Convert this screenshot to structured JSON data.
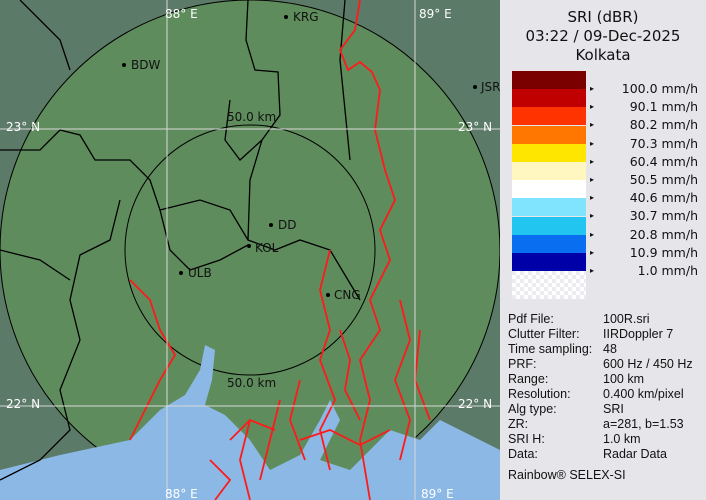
{
  "header": {
    "product": "SRI (dBR)",
    "datetime": "03:22 / 09-Dec-2025",
    "station": "Kolkata"
  },
  "legend": [
    {
      "label": "100.0 mm/h",
      "color": "#7a0000"
    },
    {
      "label": "90.1 mm/h",
      "color": "#c00000"
    },
    {
      "label": "80.2 mm/h",
      "color": "#ff3300"
    },
    {
      "label": "70.3 mm/h",
      "color": "#ff7700"
    },
    {
      "label": "60.4 mm/h",
      "color": "#ffe600"
    },
    {
      "label": "50.5 mm/h",
      "color": "#fff6c0"
    },
    {
      "label": "40.6 mm/h",
      "color": "#ffffff"
    },
    {
      "label": "30.7 mm/h",
      "color": "#80e4ff"
    },
    {
      "label": "20.8 mm/h",
      "color": "#22c4f0"
    },
    {
      "label": "10.9 mm/h",
      "color": "#0a6ef0"
    },
    {
      "label": "1.0 mm/h",
      "color": "#0000a8"
    }
  ],
  "info": [
    {
      "key": "Pdf File:",
      "value": "100R.sri"
    },
    {
      "key": "Clutter Filter:",
      "value": "IIRDoppler 7"
    },
    {
      "key": "Time sampling:",
      "value": "48"
    },
    {
      "key": "PRF:",
      "value": "600 Hz / 450 Hz"
    },
    {
      "key": "Range:",
      "value": "100 km"
    },
    {
      "key": "Resolution:",
      "value": "0.400 km/pixel"
    },
    {
      "key": "Alg type:",
      "value": "SRI"
    },
    {
      "key": "ZR:",
      "value": "a=281, b=1.53"
    },
    {
      "key": "SRI H:",
      "value": "1.0 km"
    },
    {
      "key": "Data:",
      "value": "Radar Data"
    }
  ],
  "brand": "Rainbow® SELEX-SI",
  "map": {
    "grid_labels": {
      "lon_88_top": "88° E",
      "lon_89_top": "89° E",
      "lon_88_bottom": "88° E",
      "lon_89_bottom": "89° E",
      "lat_23_left": "23° N",
      "lat_23_right": "23° N",
      "lat_22_left": "22° N",
      "lat_22_right": "22° N"
    },
    "ring_labels": {
      "outer": "50.0 km",
      "inner": "50.0 km"
    },
    "cities": [
      "BDW",
      "KRG",
      "JSR",
      "DD",
      "KOL",
      "ULB",
      "CNG"
    ],
    "colors": {
      "land_outside": "#5c7a68",
      "land_inside": "#5f8c5c",
      "water": "#8cb8e6",
      "river": "#ff1a1a",
      "border": "#000000"
    }
  }
}
